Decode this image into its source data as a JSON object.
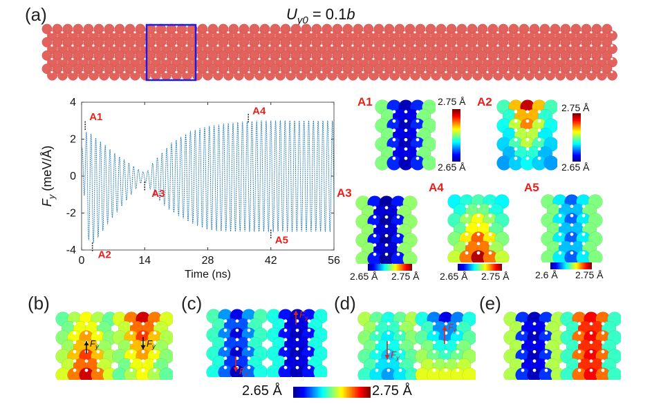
{
  "panel_labels": {
    "a": "(a)",
    "b": "(b)",
    "c": "(c)",
    "d": "(d)",
    "e": "(e)"
  },
  "top_title": "U_y0 = 0.1b",
  "strip": {
    "atom_color": "#e2625e",
    "selection_box_color": "#1a1ae6"
  },
  "chart_data": {
    "type": "line",
    "title": "",
    "xlabel": "Time (ns)",
    "ylabel": "F_y (meV/Å)",
    "xlim": [
      0,
      56
    ],
    "ylim": [
      -4,
      4
    ],
    "xticks": [
      0,
      14,
      28,
      42,
      56
    ],
    "yticks": [
      -4,
      -2,
      0,
      2,
      4
    ],
    "xtick_labels": [
      "0",
      "14",
      "28",
      "42",
      "56"
    ],
    "ytick_labels": [
      "-4",
      "-2",
      "0",
      "2",
      "4"
    ],
    "series": [
      {
        "color": "#1f77b4",
        "oscillation_period_ns": 1.05,
        "envelope_time_ns": [
          0,
          1,
          2,
          4,
          6,
          8,
          10,
          12,
          13,
          14,
          15,
          16,
          18,
          20,
          24,
          28,
          32,
          36,
          40,
          44,
          48,
          52,
          56
        ],
        "envelope_upper": [
          1.5,
          2.4,
          2.3,
          1.9,
          1.5,
          1.1,
          0.8,
          0.45,
          0.3,
          0.2,
          0.35,
          0.8,
          1.3,
          1.8,
          2.4,
          2.7,
          2.85,
          2.95,
          3.0,
          3.0,
          3.0,
          3.0,
          3.0
        ],
        "envelope_lower": [
          1.5,
          -3.0,
          -3.8,
          -3.2,
          -2.5,
          -1.9,
          -1.3,
          -0.7,
          -0.4,
          -0.3,
          -0.6,
          -1.0,
          -1.5,
          -1.9,
          -2.5,
          -2.9,
          -3.0,
          -3.0,
          -3.0,
          -3.0,
          -3.0,
          -3.0,
          -3.0
        ]
      }
    ],
    "annotations": [
      {
        "label": "A1",
        "x": 0.8,
        "y": 2.5
      },
      {
        "label": "A2",
        "x": 2.4,
        "y": -3.6
      },
      {
        "label": "A3",
        "x": 14,
        "y": -0.3
      },
      {
        "label": "A4",
        "x": 37,
        "y": 2.9
      },
      {
        "label": "A5",
        "x": 42,
        "y": -2.9
      }
    ],
    "grid": false
  },
  "snapshots": {
    "A1": {
      "label": "A1",
      "colorbar": {
        "max": "2.75 Å",
        "min": "2.65 Å"
      }
    },
    "A2": {
      "label": "A2",
      "colorbar": {
        "max": "2.75 Å",
        "min": "2.65 Å"
      }
    },
    "A3": {
      "label": "A3",
      "colorbar": {
        "min": "2.65 Å",
        "max": "2.75 Å"
      }
    },
    "A4": {
      "label": "A4",
      "colorbar": {
        "min": "2.65 Å",
        "max": "2.75 Å"
      }
    },
    "A5": {
      "label": "A5",
      "colorbar": {
        "min": "2.6 Å",
        "max": "2.75 Å"
      }
    }
  },
  "force_labels": {
    "b": "F_y",
    "c": "F_y",
    "d": "F_y"
  },
  "bottom_colorbar": {
    "min": "2.65 Å",
    "max": "2.75 Å"
  },
  "colormap": [
    "#00008f",
    "#0000ff",
    "#0080ff",
    "#00ffff",
    "#80ff80",
    "#ffff00",
    "#ff8000",
    "#ff0000",
    "#800000"
  ]
}
